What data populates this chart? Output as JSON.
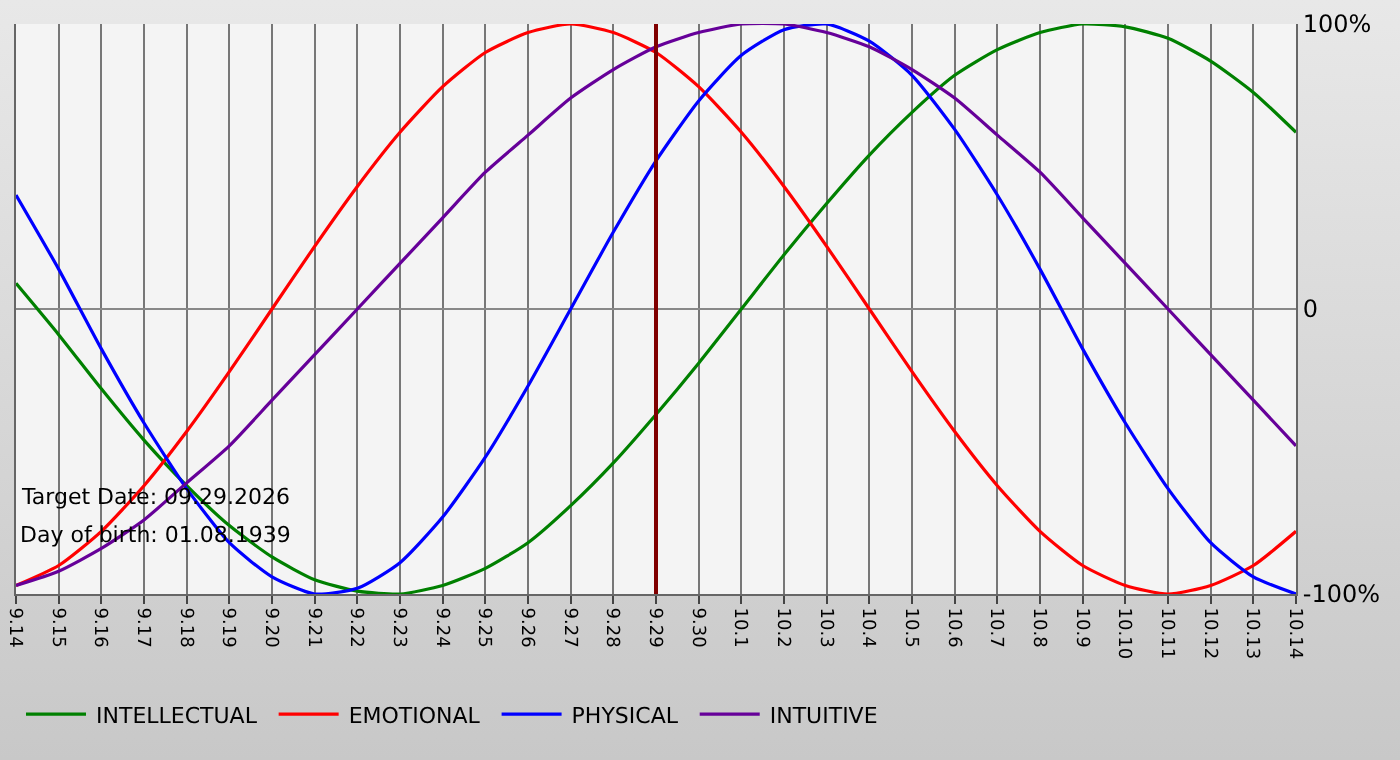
{
  "chart_data": {
    "type": "line",
    "categories": [
      "9.14",
      "9.15",
      "9.16",
      "9.17",
      "9.18",
      "9.19",
      "9.20",
      "9.21",
      "9.22",
      "9.23",
      "9.24",
      "9.25",
      "9.26",
      "9.27",
      "9.28",
      "9.29",
      "9.30",
      "10.1",
      "10.2",
      "10.3",
      "10.4",
      "10.5",
      "10.6",
      "10.7",
      "10.8",
      "10.9",
      "10.10",
      "10.11",
      "10.12",
      "10.13",
      "10.14"
    ],
    "series": [
      {
        "name": "INTELLECTUAL",
        "color": "#008000",
        "values": [
          9,
          -9,
          -28,
          -46,
          -62,
          -76,
          -87,
          -95,
          -99,
          -100,
          -97,
          -91,
          -82,
          -69,
          -54,
          -37,
          -19,
          0,
          19,
          37,
          54,
          69,
          82,
          91,
          97,
          100,
          99,
          95,
          87,
          76,
          62
        ]
      },
      {
        "name": "EMOTIONAL",
        "color": "#ff0000",
        "values": [
          -97,
          -90,
          -78,
          -62,
          -43,
          -22,
          0,
          22,
          43,
          62,
          78,
          90,
          97,
          100,
          97,
          90,
          78,
          62,
          43,
          22,
          0,
          -22,
          -43,
          -62,
          -78,
          -90,
          -97,
          -100,
          -97,
          -90,
          -78
        ]
      },
      {
        "name": "PHYSICAL",
        "color": "#0000ff",
        "values": [
          40,
          14,
          -14,
          -40,
          -63,
          -82,
          -94,
          -100,
          -98,
          -89,
          -73,
          -52,
          -27,
          0,
          27,
          52,
          73,
          89,
          98,
          100,
          94,
          82,
          63,
          40,
          14,
          -14,
          -40,
          -63,
          -82,
          -94,
          -100
        ]
      },
      {
        "name": "INTUITIVE",
        "color": "#660099",
        "values": [
          -97,
          -92,
          -84,
          -74,
          -61,
          -48,
          -32,
          -16,
          0,
          16,
          32,
          48,
          61,
          74,
          84,
          92,
          97,
          100,
          100,
          97,
          92,
          84,
          74,
          61,
          48,
          32,
          16,
          0,
          -16,
          -32,
          -48
        ]
      }
    ],
    "ylim": [
      -100,
      100
    ],
    "yticks": [
      {
        "value": 100,
        "label": "100%"
      },
      0,
      {
        "value": -100,
        "label": "-100%"
      }
    ],
    "ref_lines": [
      {
        "axis": "x",
        "value": "9.29",
        "color": "#800000"
      }
    ],
    "annotations": [
      "Target Date: 09.29.2026",
      "Day of birth: 01.08.1939"
    ],
    "grid": true,
    "legend": "bottom left",
    "marker": "none",
    "line_style": "solid"
  }
}
